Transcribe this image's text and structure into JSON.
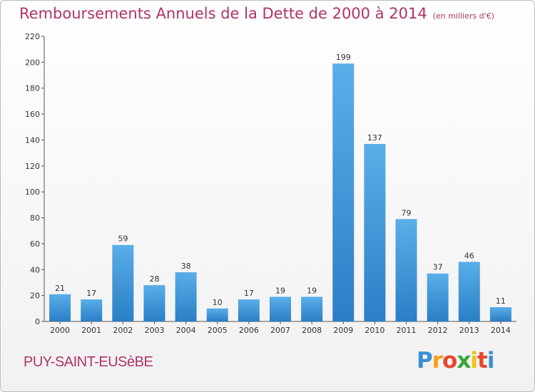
{
  "header": {
    "title": "Remboursements Annuels de la Dette de 2000 à 2014",
    "unit_note": "(en milliers d'€)"
  },
  "footer": {
    "commune": "PUY-SAINT-EUSèBE",
    "logo_text": "Proxiti"
  },
  "colors": {
    "bar_light": "#5aaee8",
    "bar_dark": "#2a7fc6",
    "title": "#b0336b",
    "axis": "#444444"
  },
  "chart_data": {
    "type": "bar",
    "categories": [
      "2000",
      "2001",
      "2002",
      "2003",
      "2004",
      "2005",
      "2006",
      "2007",
      "2008",
      "2009",
      "2010",
      "2011",
      "2012",
      "2013",
      "2014"
    ],
    "values": [
      21,
      17,
      59,
      28,
      38,
      10,
      17,
      19,
      19,
      199,
      137,
      79,
      37,
      46,
      11
    ],
    "ylim": [
      0,
      220
    ],
    "yticks": [
      0,
      20,
      40,
      60,
      80,
      100,
      120,
      140,
      160,
      180,
      200,
      220
    ],
    "grid": false,
    "legend": "none"
  }
}
